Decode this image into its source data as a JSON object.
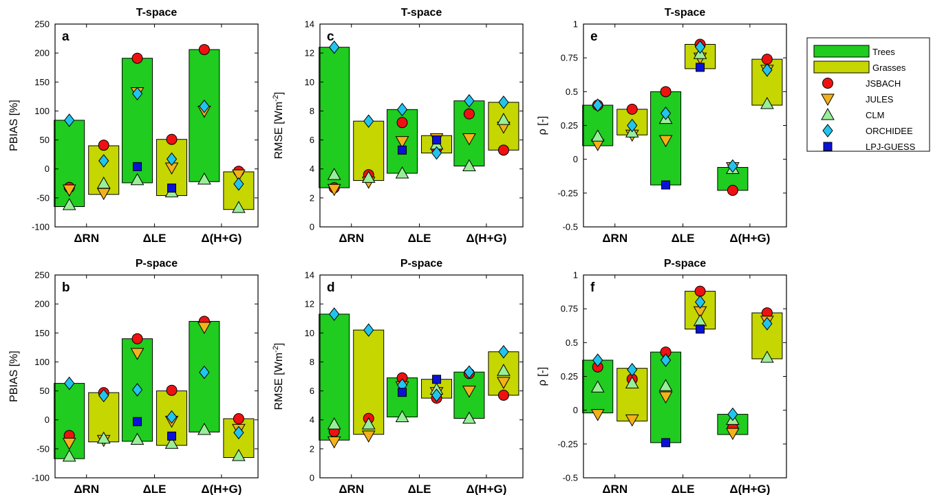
{
  "colors": {
    "trees": "#1fcc1f",
    "grasses": "#c6d600",
    "JSBACH": "#ee1111",
    "JULES": "#f3b21a",
    "CLM": "#99ee99",
    "ORCHIDEE": "#22c4ee",
    "LPJ-GUESS": "#0a12d8"
  },
  "legend": {
    "position": "right",
    "entries": [
      {
        "key": "trees",
        "label": "Trees",
        "symbol": "bar"
      },
      {
        "key": "grasses",
        "label": "Grasses",
        "symbol": "bar"
      },
      {
        "key": "JSBACH",
        "label": "JSBACH",
        "symbol": "circle-icon"
      },
      {
        "key": "JULES",
        "label": "JULES",
        "symbol": "triangle-down-icon"
      },
      {
        "key": "CLM",
        "label": "CLM",
        "symbol": "triangle-up-icon"
      },
      {
        "key": "ORCHIDEE",
        "label": "ORCHIDEE",
        "symbol": "diamond-icon"
      },
      {
        "key": "LPJ-GUESS",
        "label": "LPJ-GUESS",
        "symbol": "square-icon"
      }
    ]
  },
  "chart_data": [
    {
      "type": "bar",
      "panel": "a",
      "title": "T-space",
      "ylabel": "PBIAS [%]",
      "ylim": [
        -100,
        250
      ],
      "yticks": [
        -100,
        -50,
        0,
        50,
        100,
        150,
        200,
        250
      ],
      "categories": [
        "ΔRN",
        "ΔLE",
        "Δ(H+G)"
      ],
      "groups": [
        {
          "trees": {
            "range": [
              -65,
              84
            ],
            "models": {
              "JSBACH": -32,
              "JULES": -36,
              "CLM": -62,
              "ORCHIDEE": 84
            }
          },
          "grasses": {
            "range": [
              -44,
              40
            ],
            "models": {
              "JSBACH": 41,
              "JULES": -42,
              "CLM": -25,
              "ORCHIDEE": 14
            }
          }
        },
        {
          "trees": {
            "range": [
              -24,
              191
            ],
            "models": {
              "JSBACH": 191,
              "JULES": 132,
              "CLM": -19,
              "ORCHIDEE": 130,
              "LPJ-GUESS": 4
            }
          },
          "grasses": {
            "range": [
              -46,
              51
            ],
            "models": {
              "JSBACH": 51,
              "JULES": 2,
              "CLM": -40,
              "ORCHIDEE": 17,
              "LPJ-GUESS": -33
            }
          }
        },
        {
          "trees": {
            "range": [
              -22,
              206
            ],
            "models": {
              "JSBACH": 206,
              "JULES": 100,
              "CLM": -18,
              "ORCHIDEE": 108
            }
          },
          "grasses": {
            "range": [
              -70,
              -5
            ],
            "models": {
              "JSBACH": -4,
              "JULES": -10,
              "CLM": -67,
              "ORCHIDEE": -26
            }
          }
        }
      ]
    },
    {
      "type": "bar",
      "panel": "c",
      "title": "T-space",
      "ylabel": "RMSE [Wm^-2]",
      "ylim": [
        0,
        14
      ],
      "yticks": [
        0,
        2,
        4,
        6,
        8,
        10,
        12,
        14
      ],
      "categories": [
        "ΔRN",
        "ΔLE",
        "Δ(H+G)"
      ],
      "groups": [
        {
          "trees": {
            "range": [
              2.7,
              12.4
            ],
            "models": {
              "JSBACH": 2.7,
              "JULES": 2.6,
              "CLM": 3.6,
              "ORCHIDEE": 12.4
            }
          },
          "grasses": {
            "range": [
              3.2,
              7.3
            ],
            "models": {
              "JSBACH": 3.6,
              "JULES": 3.1,
              "CLM": 3.4,
              "ORCHIDEE": 7.3
            }
          }
        },
        {
          "trees": {
            "range": [
              3.7,
              8.1
            ],
            "models": {
              "JSBACH": 7.2,
              "JULES": 5.9,
              "CLM": 3.7,
              "ORCHIDEE": 8.1,
              "LPJ-GUESS": 5.3
            }
          },
          "grasses": {
            "range": [
              5.1,
              6.3
            ],
            "models": {
              "JSBACH": 5.4,
              "JULES": 6.1,
              "CLM": 5.7,
              "ORCHIDEE": 5.1,
              "LPJ-GUESS": 6.0
            }
          }
        },
        {
          "trees": {
            "range": [
              4.2,
              8.7
            ],
            "models": {
              "JSBACH": 7.8,
              "JULES": 6.1,
              "CLM": 4.2,
              "ORCHIDEE": 8.7
            }
          },
          "grasses": {
            "range": [
              5.3,
              8.6
            ],
            "models": {
              "JSBACH": 5.3,
              "JULES": 6.9,
              "CLM": 7.4,
              "ORCHIDEE": 8.6
            }
          }
        }
      ]
    },
    {
      "type": "bar",
      "panel": "e",
      "title": "T-space",
      "ylabel": "ρ [-]",
      "ylim": [
        -0.5,
        1
      ],
      "yticks": [
        -0.5,
        -0.25,
        0,
        0.25,
        0.5,
        0.75,
        1
      ],
      "categories": [
        "ΔRN",
        "ΔLE",
        "Δ(H+G)"
      ],
      "groups": [
        {
          "trees": {
            "range": [
              0.1,
              0.4
            ],
            "models": {
              "JSBACH": 0.4,
              "JULES": 0.11,
              "CLM": 0.17,
              "ORCHIDEE": 0.4
            }
          },
          "grasses": {
            "range": [
              0.18,
              0.37
            ],
            "models": {
              "JSBACH": 0.37,
              "JULES": 0.18,
              "CLM": 0.2,
              "ORCHIDEE": 0.25
            }
          }
        },
        {
          "trees": {
            "range": [
              -0.19,
              0.5
            ],
            "models": {
              "JSBACH": 0.5,
              "JULES": 0.14,
              "CLM": 0.3,
              "ORCHIDEE": 0.34,
              "LPJ-GUESS": -0.19
            }
          },
          "grasses": {
            "range": [
              0.67,
              0.85
            ],
            "models": {
              "JSBACH": 0.85,
              "JULES": 0.75,
              "CLM": 0.78,
              "ORCHIDEE": 0.83,
              "LPJ-GUESS": 0.68
            }
          }
        },
        {
          "trees": {
            "range": [
              -0.23,
              -0.06
            ],
            "models": {
              "JSBACH": -0.23,
              "JULES": -0.06,
              "CLM": -0.07,
              "ORCHIDEE": -0.05
            }
          },
          "grasses": {
            "range": [
              0.4,
              0.74
            ],
            "models": {
              "JSBACH": 0.74,
              "JULES": 0.66,
              "CLM": 0.41,
              "ORCHIDEE": 0.66
            }
          }
        }
      ]
    },
    {
      "type": "bar",
      "panel": "b",
      "title": "P-space",
      "ylabel": "PBIAS [%]",
      "ylim": [
        -100,
        250
      ],
      "yticks": [
        -100,
        -50,
        0,
        50,
        100,
        150,
        200,
        250
      ],
      "categories": [
        "ΔRN",
        "ΔLE",
        "Δ(H+G)"
      ],
      "groups": [
        {
          "trees": {
            "range": [
              -67,
              63
            ],
            "models": {
              "JSBACH": -27,
              "JULES": -40,
              "CLM": -63,
              "ORCHIDEE": 63
            }
          },
          "grasses": {
            "range": [
              -38,
              47
            ],
            "models": {
              "JSBACH": 47,
              "JULES": -35,
              "CLM": -32,
              "ORCHIDEE": 42
            }
          }
        },
        {
          "trees": {
            "range": [
              -37,
              140
            ],
            "models": {
              "JSBACH": 140,
              "JULES": 115,
              "CLM": -34,
              "ORCHIDEE": 52,
              "LPJ-GUESS": -3
            }
          },
          "grasses": {
            "range": [
              -44,
              50
            ],
            "models": {
              "JSBACH": 51,
              "JULES": -2,
              "CLM": -41,
              "ORCHIDEE": 5,
              "LPJ-GUESS": -28
            }
          }
        },
        {
          "trees": {
            "range": [
              -21,
              170
            ],
            "models": {
              "JSBACH": 170,
              "JULES": 160,
              "CLM": -17,
              "ORCHIDEE": 82
            }
          },
          "grasses": {
            "range": [
              -65,
              2
            ],
            "models": {
              "JSBACH": 2,
              "JULES": -16,
              "CLM": -62,
              "ORCHIDEE": -22
            }
          }
        }
      ]
    },
    {
      "type": "bar",
      "panel": "d",
      "title": "P-space",
      "ylabel": "RMSE [Wm^-2]",
      "ylim": [
        0,
        14
      ],
      "yticks": [
        0,
        2,
        4,
        6,
        8,
        10,
        12,
        14
      ],
      "categories": [
        "ΔRN",
        "ΔLE",
        "Δ(H+G)"
      ],
      "groups": [
        {
          "trees": {
            "range": [
              2.6,
              11.3
            ],
            "models": {
              "JSBACH": 3.2,
              "JULES": 2.5,
              "CLM": 3.7,
              "ORCHIDEE": 11.3
            }
          },
          "grasses": {
            "range": [
              3.0,
              10.2
            ],
            "models": {
              "JSBACH": 4.1,
              "JULES": 2.9,
              "CLM": 3.7,
              "ORCHIDEE": 10.2
            }
          }
        },
        {
          "trees": {
            "range": [
              4.2,
              6.9
            ],
            "models": {
              "JSBACH": 6.9,
              "JULES": 6.3,
              "CLM": 4.2,
              "ORCHIDEE": 6.4,
              "LPJ-GUESS": 5.9
            }
          },
          "grasses": {
            "range": [
              5.5,
              6.8
            ],
            "models": {
              "JSBACH": 5.5,
              "JULES": 5.9,
              "CLM": 6.1,
              "ORCHIDEE": 5.7,
              "LPJ-GUESS": 6.8
            }
          }
        },
        {
          "trees": {
            "range": [
              4.1,
              7.3
            ],
            "models": {
              "JSBACH": 7.2,
              "JULES": 6.0,
              "CLM": 4.1,
              "ORCHIDEE": 7.3
            }
          },
          "grasses": {
            "range": [
              5.7,
              8.7
            ],
            "models": {
              "JSBACH": 5.7,
              "JULES": 6.6,
              "CLM": 7.4,
              "ORCHIDEE": 8.7
            }
          }
        }
      ]
    },
    {
      "type": "bar",
      "panel": "f",
      "title": "P-space",
      "ylabel": "ρ [-]",
      "ylim": [
        -0.5,
        1
      ],
      "yticks": [
        -0.5,
        -0.25,
        0,
        0.25,
        0.5,
        0.75,
        1
      ],
      "categories": [
        "ΔRN",
        "ΔLE",
        "Δ(H+G)"
      ],
      "groups": [
        {
          "trees": {
            "range": [
              -0.02,
              0.37
            ],
            "models": {
              "JSBACH": 0.32,
              "JULES": -0.03,
              "CLM": 0.17,
              "ORCHIDEE": 0.37
            }
          },
          "grasses": {
            "range": [
              -0.08,
              0.31
            ],
            "models": {
              "JSBACH": 0.23,
              "JULES": -0.07,
              "CLM": 0.2,
              "ORCHIDEE": 0.3
            }
          }
        },
        {
          "trees": {
            "range": [
              -0.24,
              0.43
            ],
            "models": {
              "JSBACH": 0.43,
              "JULES": 0.1,
              "CLM": 0.18,
              "ORCHIDEE": 0.37,
              "LPJ-GUESS": -0.24
            }
          },
          "grasses": {
            "range": [
              0.6,
              0.88
            ],
            "models": {
              "JSBACH": 0.88,
              "JULES": 0.73,
              "CLM": 0.66,
              "ORCHIDEE": 0.8,
              "LPJ-GUESS": 0.6
            }
          }
        },
        {
          "trees": {
            "range": [
              -0.18,
              -0.03
            ],
            "models": {
              "JSBACH": -0.13,
              "JULES": -0.17,
              "CLM": -0.07,
              "ORCHIDEE": -0.03
            }
          },
          "grasses": {
            "range": [
              0.38,
              0.72
            ],
            "models": {
              "JSBACH": 0.72,
              "JULES": 0.66,
              "CLM": 0.39,
              "ORCHIDEE": 0.64
            }
          }
        }
      ]
    }
  ]
}
